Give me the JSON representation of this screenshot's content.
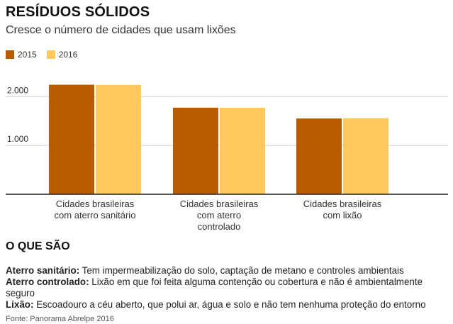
{
  "header": {
    "title": "RESÍDUOS SÓLIDOS",
    "subtitle": "Cresce o número de cidades que usam lixões"
  },
  "colors": {
    "series_2015": "#b85c00",
    "series_2016": "#fdc95c",
    "grid": "#d0d0d0",
    "axis": "#222222"
  },
  "chart_data": {
    "type": "bar",
    "categories": [
      [
        "Cidades brasileiras",
        "com aterro sanitário"
      ],
      [
        "Cidades brasileiras",
        "com aterro",
        "controlado"
      ],
      [
        "Cidades brasileiras",
        "com lixão"
      ]
    ],
    "series": [
      {
        "name": "2015",
        "values": [
          2244,
          1774,
          1552
        ]
      },
      {
        "name": "2016",
        "values": [
          2239,
          1772,
          1559
        ]
      }
    ],
    "yticks": [
      {
        "value": 1000,
        "label": "1.000"
      },
      {
        "value": 2000,
        "label": "2.000"
      }
    ],
    "ylim": [
      0,
      2600
    ],
    "grid": true,
    "legend_position": "top-left"
  },
  "definitions": {
    "section_title": "O QUE SÃO",
    "items": [
      {
        "term": "Aterro sanitário:",
        "text": "Tem impermeabilização do solo, captação de metano e controles ambientais"
      },
      {
        "term": "Aterro controlado:",
        "text": "Lixão em que foi feita alguma contenção ou cobertura e não é ambientalmente seguro"
      },
      {
        "term": "Lixão:",
        "text": "Escoadouro a céu aberto, que polui ar, água e solo e não tem nenhuma proteção do entorno"
      }
    ]
  },
  "footer": {
    "source": "Fonte: Panorama Abrelpe 2016"
  }
}
